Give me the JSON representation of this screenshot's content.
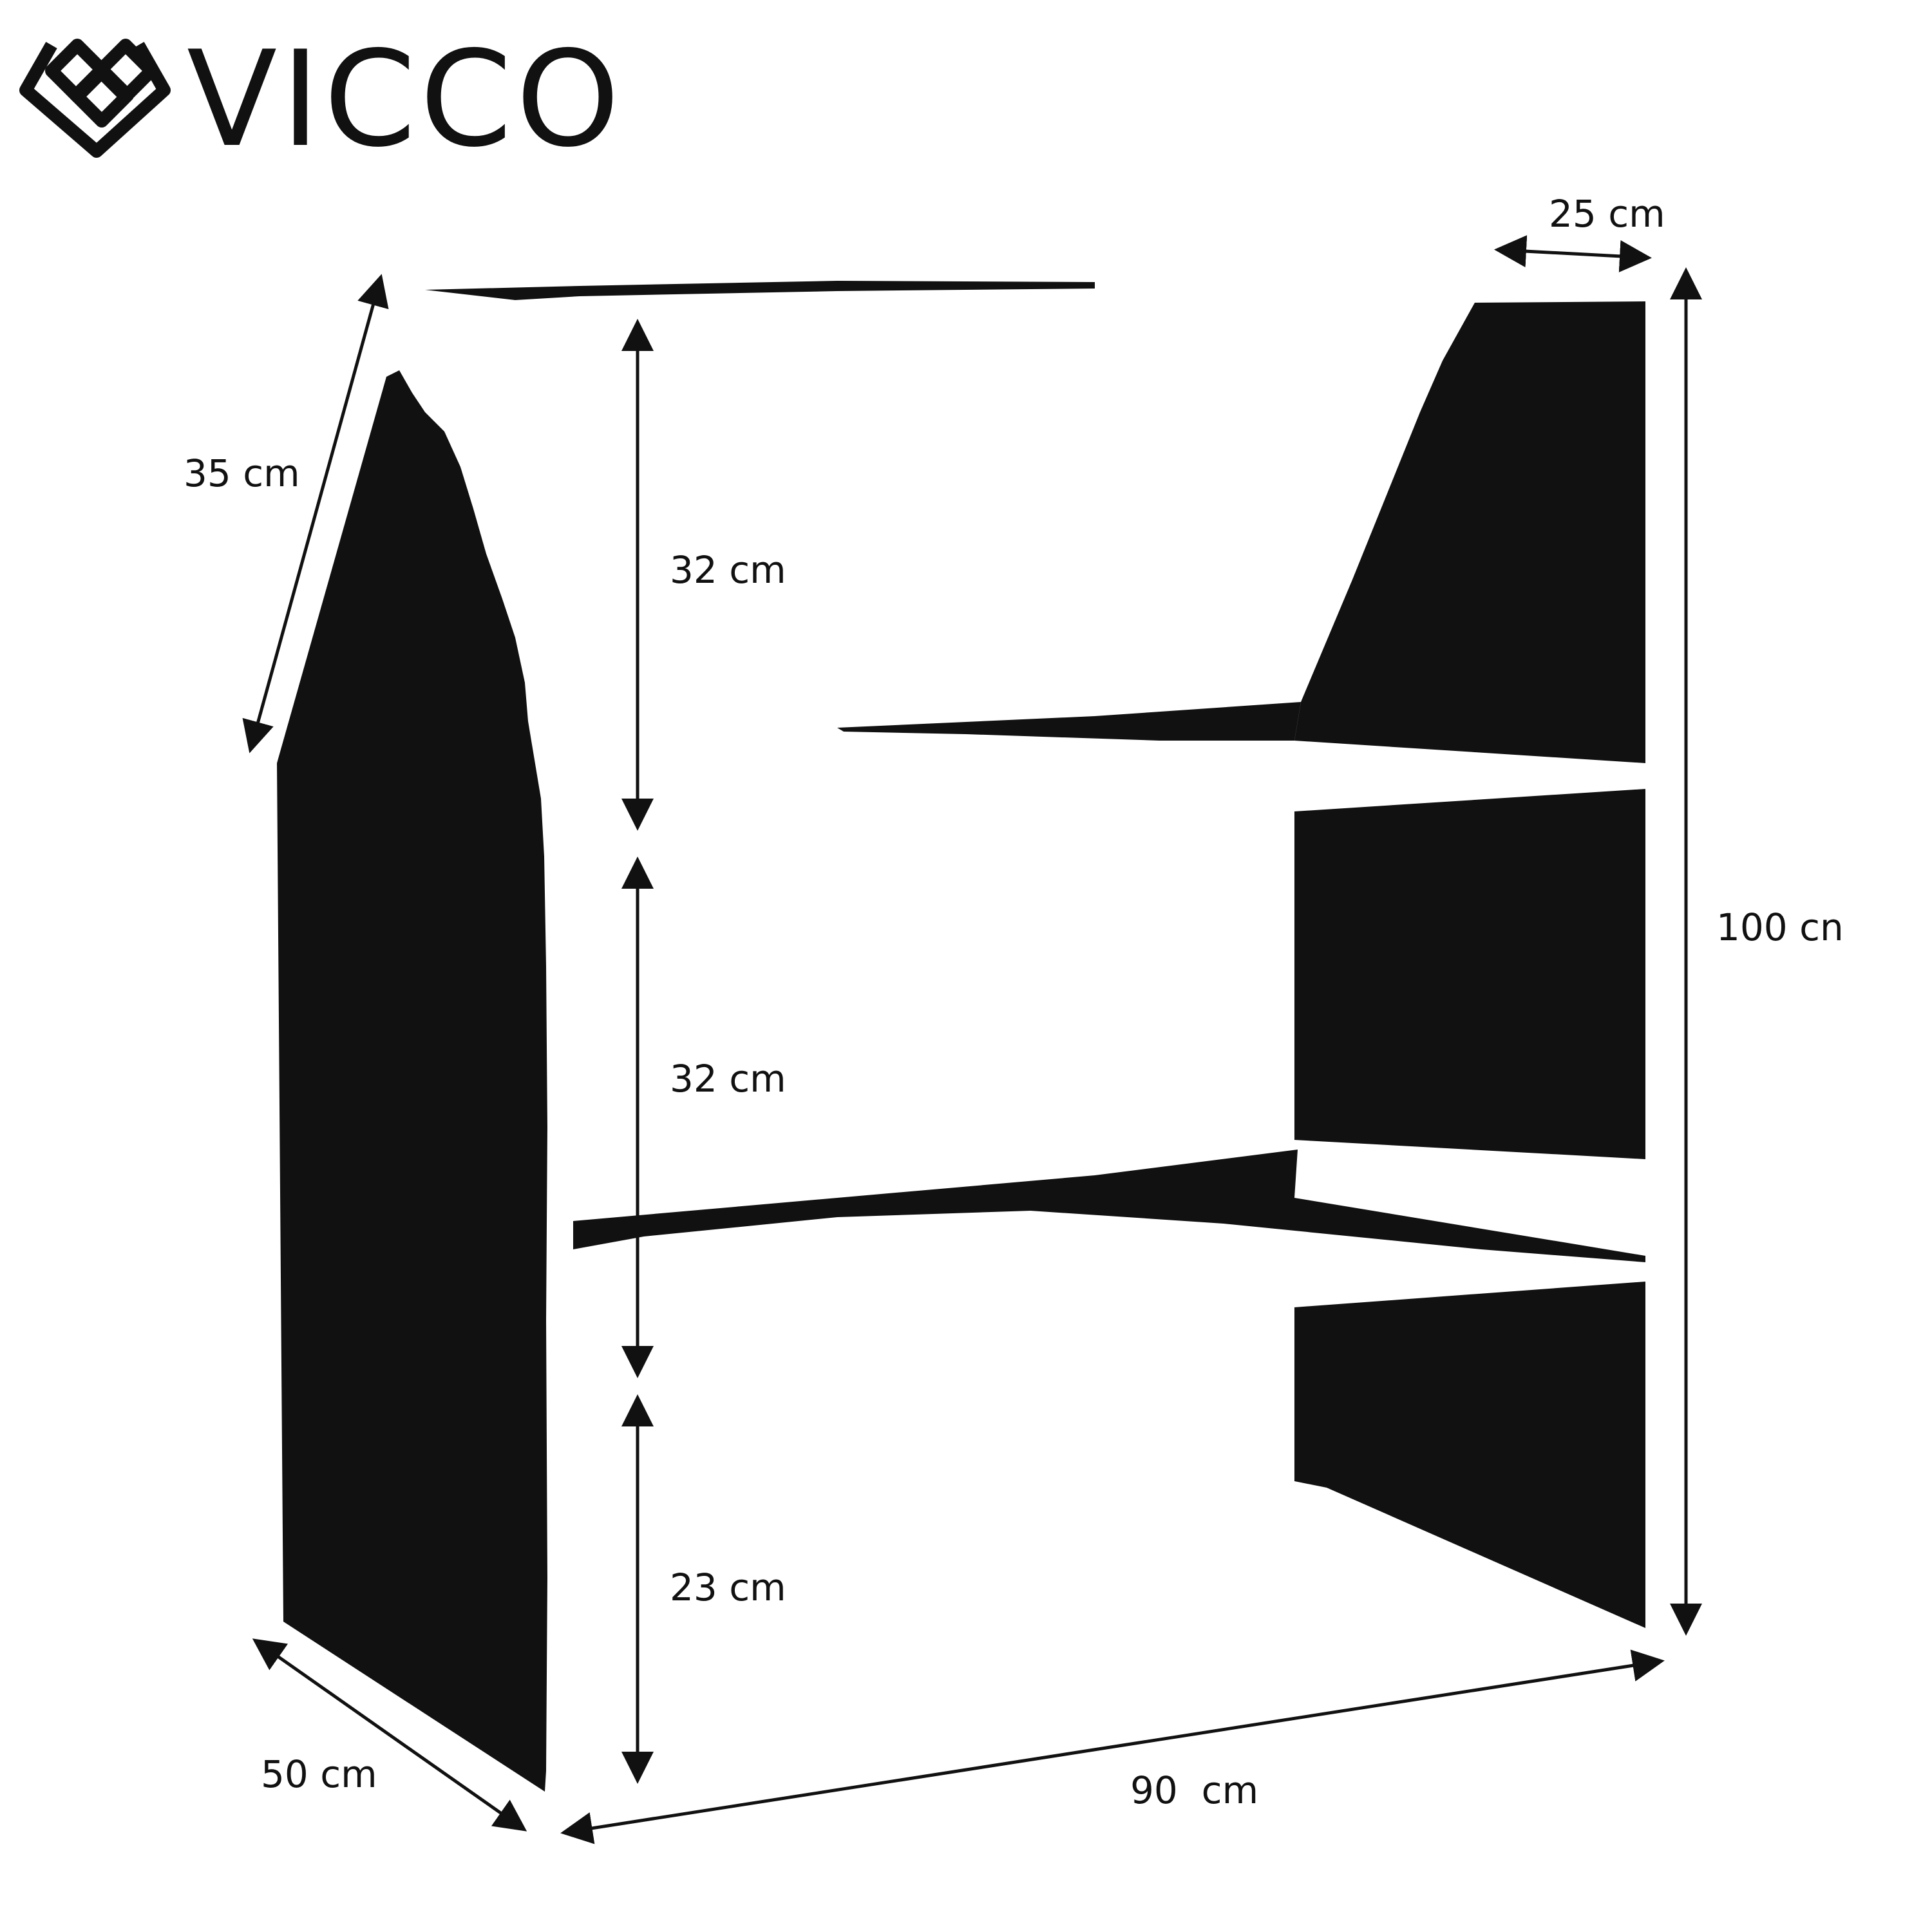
{
  "brand": {
    "name": "VICCO",
    "logo_icon": "interlocking-diamonds-icon"
  },
  "colors": {
    "ink": "#111111",
    "background": "#ffffff"
  },
  "dimensions": {
    "top_depth": "25 cm",
    "upper_depth": "35 cm",
    "total_height": "100 cn",
    "shelf_top": "32 cm",
    "shelf_middle": "32 cm",
    "shelf_bottom": "23 cm",
    "base_depth": "50 cm",
    "width": "90  cm"
  }
}
